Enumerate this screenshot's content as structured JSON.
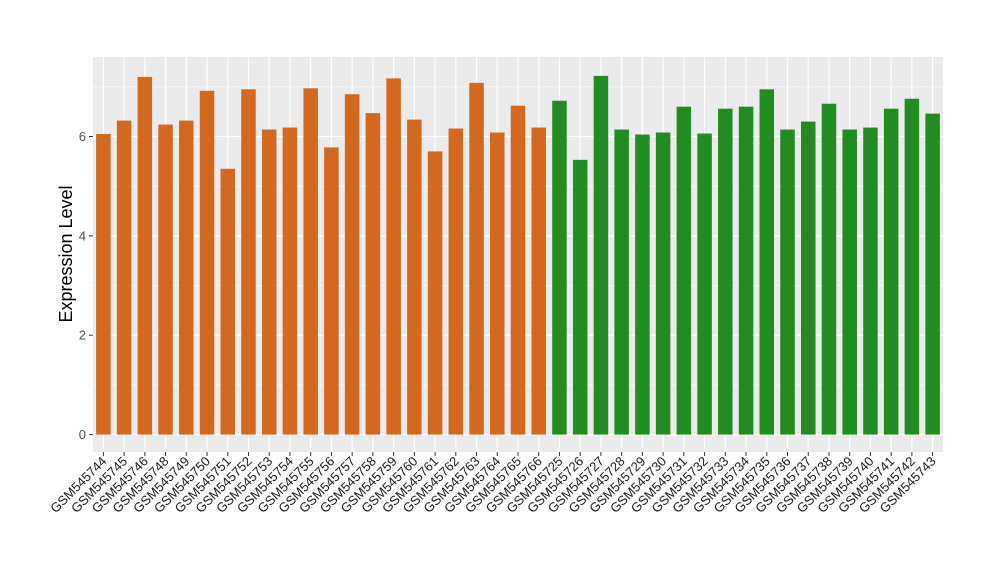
{
  "chart_data": {
    "type": "bar",
    "title": "",
    "xlabel": "",
    "ylabel": "Expression Level",
    "ylim": [
      -0.35,
      7.6
    ],
    "yticks": [
      0,
      2,
      4,
      6
    ],
    "grid": true,
    "colors": {
      "group1": "#D2691E",
      "group2": "#228B22",
      "panel_bg": "#EBEBEB",
      "grid": "#FFFFFF"
    },
    "categories": [
      "GSM545744",
      "GSM545745",
      "GSM545746",
      "GSM545748",
      "GSM545749",
      "GSM545750",
      "GSM545751",
      "GSM545752",
      "GSM545753",
      "GSM545754",
      "GSM545755",
      "GSM545756",
      "GSM545757",
      "GSM545758",
      "GSM545759",
      "GSM545760",
      "GSM545761",
      "GSM545762",
      "GSM545763",
      "GSM545764",
      "GSM545765",
      "GSM545766",
      "GSM545725",
      "GSM545726",
      "GSM545727",
      "GSM545728",
      "GSM545729",
      "GSM545730",
      "GSM545731",
      "GSM545732",
      "GSM545733",
      "GSM545734",
      "GSM545735",
      "GSM545736",
      "GSM545737",
      "GSM545738",
      "GSM545739",
      "GSM545740",
      "GSM545741",
      "GSM545742",
      "GSM545743"
    ],
    "values": [
      6.05,
      6.32,
      7.2,
      6.24,
      6.32,
      6.92,
      5.35,
      6.95,
      6.14,
      6.18,
      6.97,
      5.78,
      6.85,
      6.47,
      7.17,
      6.34,
      5.7,
      6.16,
      7.08,
      6.08,
      6.62,
      6.18,
      6.72,
      5.53,
      7.22,
      6.14,
      6.04,
      6.08,
      6.6,
      6.06,
      6.56,
      6.6,
      6.95,
      6.14,
      6.3,
      6.66,
      6.14,
      6.18,
      6.56,
      6.76,
      6.46
    ],
    "groups": [
      1,
      1,
      1,
      1,
      1,
      1,
      1,
      1,
      1,
      1,
      1,
      1,
      1,
      1,
      1,
      1,
      1,
      1,
      1,
      1,
      1,
      1,
      2,
      2,
      2,
      2,
      2,
      2,
      2,
      2,
      2,
      2,
      2,
      2,
      2,
      2,
      2,
      2,
      2,
      2,
      2
    ]
  }
}
